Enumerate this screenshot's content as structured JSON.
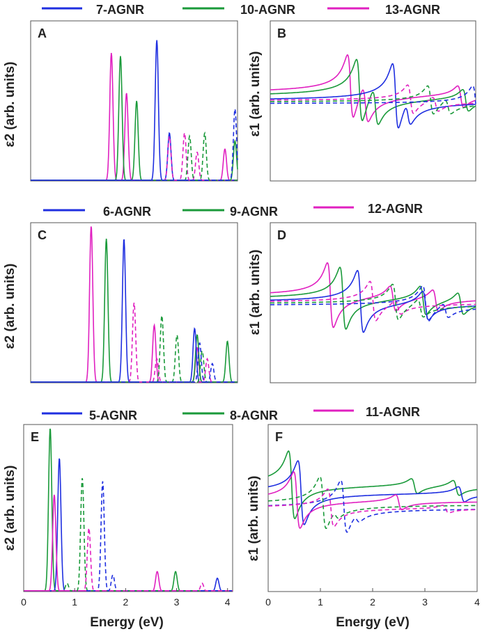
{
  "figure": {
    "x_axis_label": "Energy (eV)",
    "eps2_label": "ε2 (arb. units)",
    "eps1_label": "ε1 (arb. units)"
  },
  "colors": {
    "blue": "#1f2fe0",
    "green": "#1a9a3a",
    "magenta": "#e020c0"
  },
  "chart_data": [
    {
      "group": "top",
      "legend": [
        {
          "label": "7-AGNR",
          "color": "#1f2fe0"
        },
        {
          "label": "10-AGNR",
          "color": "#1a9a3a"
        },
        {
          "label": "13-AGNR",
          "color": "#e020c0"
        }
      ],
      "panels": [
        {
          "id": "A",
          "type": "line",
          "quantity": "eps2",
          "xlim": [
            0,
            4.1
          ],
          "ylim": [
            0,
            1
          ],
          "ylabel": "ε2 (arb. units)",
          "ticks": false,
          "series": [
            {
              "name": "13-AGNR",
              "color": "#e020c0",
              "dash": false,
              "peaks": [
                [
                  1.6,
                  0.8
                ],
                [
                  1.9,
                  0.55
                ],
                [
                  3.85,
                  0.2
                ]
              ]
            },
            {
              "name": "10-AGNR",
              "color": "#1a9a3a",
              "dash": false,
              "peaks": [
                [
                  1.78,
                  0.78
                ],
                [
                  2.1,
                  0.5
                ],
                [
                  4.05,
                  0.25
                ]
              ]
            },
            {
              "name": "7-AGNR",
              "color": "#1f2fe0",
              "dash": false,
              "peaks": [
                [
                  2.5,
                  0.88
                ],
                [
                  2.75,
                  0.3
                ]
              ]
            },
            {
              "name": "13-AGNR",
              "color": "#e020c0",
              "dash": true,
              "peaks": [
                [
                  2.75,
                  0.28
                ],
                [
                  3.05,
                  0.3
                ],
                [
                  3.3,
                  0.18
                ]
              ]
            },
            {
              "name": "10-AGNR",
              "color": "#1a9a3a",
              "dash": true,
              "peaks": [
                [
                  3.15,
                  0.28
                ],
                [
                  3.45,
                  0.3
                ]
              ]
            },
            {
              "name": "7-AGNR",
              "color": "#1f2fe0",
              "dash": true,
              "peaks": [
                [
                  4.05,
                  0.45
                ]
              ]
            }
          ]
        },
        {
          "id": "B",
          "type": "line",
          "quantity": "eps1",
          "xlim": [
            0,
            4.1
          ],
          "ylim": [
            -1,
            1
          ],
          "ylabel": "ε1 (arb. units)",
          "ticks": false,
          "series": [
            {
              "name": "13-AGNR",
              "color": "#e020c0",
              "dash": false,
              "res": [
                [
                  1.6,
                  0.9
                ],
                [
                  1.9,
                  0.5
                ],
                [
                  3.8,
                  0.3
                ]
              ],
              "base": 0.1
            },
            {
              "name": "10-AGNR",
              "color": "#1a9a3a",
              "dash": false,
              "res": [
                [
                  1.78,
                  0.88
                ],
                [
                  2.1,
                  0.5
                ],
                [
                  3.9,
                  0.3
                ]
              ],
              "base": 0.05
            },
            {
              "name": "7-AGNR",
              "color": "#1f2fe0",
              "dash": false,
              "res": [
                [
                  2.5,
                  0.92
                ],
                [
                  2.75,
                  0.3
                ]
              ],
              "base": 0.0
            },
            {
              "name": "13-AGNR",
              "color": "#e020c0",
              "dash": true,
              "res": [
                [
                  2.8,
                  0.4
                ],
                [
                  3.3,
                  0.2
                ]
              ],
              "base": 0.0
            },
            {
              "name": "10-AGNR",
              "color": "#1a9a3a",
              "dash": true,
              "res": [
                [
                  3.2,
                  0.4
                ],
                [
                  3.55,
                  0.2
                ]
              ],
              "base": -0.02
            },
            {
              "name": "7-AGNR",
              "color": "#1f2fe0",
              "dash": true,
              "res": [
                [
                  4.1,
                  0.5
                ]
              ],
              "base": -0.04
            }
          ]
        }
      ]
    },
    {
      "group": "middle",
      "legend": [
        {
          "label": "6-AGNR",
          "color": "#1f2fe0"
        },
        {
          "label": "9-AGNR",
          "color": "#1a9a3a"
        },
        {
          "label": "12-AGNR",
          "color": "#e020c0"
        }
      ],
      "panels": [
        {
          "id": "C",
          "type": "line",
          "quantity": "eps2",
          "xlim": [
            0,
            4.1
          ],
          "ylim": [
            0,
            1
          ],
          "ylabel": "ε2 (arb. units)",
          "ticks": false,
          "series": [
            {
              "name": "12-AGNR",
              "color": "#e020c0",
              "dash": false,
              "peaks": [
                [
                  1.2,
                  0.98
                ],
                [
                  2.45,
                  0.36
                ],
                [
                  3.3,
                  0.22
                ]
              ]
            },
            {
              "name": "9-AGNR",
              "color": "#1a9a3a",
              "dash": false,
              "peaks": [
                [
                  1.5,
                  0.9
                ],
                [
                  3.3,
                  0.3
                ],
                [
                  3.9,
                  0.26
                ]
              ]
            },
            {
              "name": "6-AGNR",
              "color": "#1f2fe0",
              "dash": false,
              "peaks": [
                [
                  1.85,
                  0.9
                ],
                [
                  3.25,
                  0.34
                ]
              ]
            },
            {
              "name": "12-AGNR",
              "color": "#e020c0",
              "dash": true,
              "peaks": [
                [
                  2.05,
                  0.5
                ],
                [
                  2.5,
                  0.15
                ],
                [
                  3.5,
                  0.15
                ]
              ]
            },
            {
              "name": "9-AGNR",
              "color": "#1a9a3a",
              "dash": true,
              "peaks": [
                [
                  2.6,
                  0.42
                ],
                [
                  2.9,
                  0.3
                ],
                [
                  3.4,
                  0.2
                ]
              ]
            },
            {
              "name": "6-AGNR",
              "color": "#1f2fe0",
              "dash": true,
              "peaks": [
                [
                  3.35,
                  0.25
                ],
                [
                  3.6,
                  0.12
                ]
              ]
            }
          ]
        },
        {
          "id": "D",
          "type": "line",
          "quantity": "eps1",
          "xlim": [
            0,
            4.1
          ],
          "ylim": [
            -1,
            1
          ],
          "ylabel": "ε1 (arb. units)",
          "ticks": false,
          "series": [
            {
              "name": "12-AGNR",
              "color": "#e020c0",
              "dash": false,
              "res": [
                [
                  1.2,
                  0.9
                ],
                [
                  2.45,
                  0.35
                ],
                [
                  3.3,
                  0.3
                ]
              ],
              "base": 0.08
            },
            {
              "name": "9-AGNR",
              "color": "#1a9a3a",
              "dash": false,
              "res": [
                [
                  1.45,
                  0.86
                ],
                [
                  3.05,
                  0.4
                ],
                [
                  3.8,
                  0.3
                ]
              ],
              "base": 0.04
            },
            {
              "name": "6-AGNR",
              "color": "#1f2fe0",
              "dash": false,
              "res": [
                [
                  1.8,
                  0.86
                ],
                [
                  3.1,
                  0.4
                ]
              ],
              "base": 0.0
            },
            {
              "name": "12-AGNR",
              "color": "#e020c0",
              "dash": true,
              "res": [
                [
                  2.05,
                  0.55
                ],
                [
                  2.55,
                  0.2
                ]
              ],
              "base": 0.0
            },
            {
              "name": "9-AGNR",
              "color": "#1a9a3a",
              "dash": true,
              "res": [
                [
                  2.5,
                  0.5
                ],
                [
                  3.0,
                  0.25
                ]
              ],
              "base": -0.02
            },
            {
              "name": "6-AGNR",
              "color": "#1f2fe0",
              "dash": true,
              "res": [
                [
                  3.1,
                  0.5
                ],
                [
                  3.5,
                  0.2
                ]
              ],
              "base": -0.04
            }
          ]
        }
      ]
    },
    {
      "group": "bottom",
      "legend": [
        {
          "label": "5-AGNR",
          "color": "#1f2fe0"
        },
        {
          "label": "8-AGNR",
          "color": "#1a9a3a"
        },
        {
          "label": "11-AGNR",
          "color": "#e020c0"
        }
      ],
      "panels": [
        {
          "id": "E",
          "type": "line",
          "quantity": "eps2",
          "xlim": [
            0,
            4.1
          ],
          "ylim": [
            0,
            1
          ],
          "ylabel": "ε2 (arb. units)",
          "ticks": true,
          "xticks": [
            0,
            1,
            2,
            3,
            4
          ],
          "xlabel": "Energy (eV)",
          "series": [
            {
              "name": "8-AGNR",
              "color": "#1a9a3a",
              "dash": false,
              "peaks": [
                [
                  0.52,
                  0.98
                ],
                [
                  2.98,
                  0.12
                ]
              ]
            },
            {
              "name": "5-AGNR",
              "color": "#1f2fe0",
              "dash": false,
              "peaks": [
                [
                  0.7,
                  0.8
                ],
                [
                  3.8,
                  0.08
                ]
              ]
            },
            {
              "name": "11-AGNR",
              "color": "#e020c0",
              "dash": false,
              "peaks": [
                [
                  0.6,
                  0.58
                ],
                [
                  2.62,
                  0.12
                ]
              ]
            },
            {
              "name": "8-AGNR",
              "color": "#1a9a3a",
              "dash": true,
              "peaks": [
                [
                  1.15,
                  0.68
                ],
                [
                  0.85,
                  0.05
                ]
              ]
            },
            {
              "name": "5-AGNR",
              "color": "#1f2fe0",
              "dash": true,
              "peaks": [
                [
                  1.55,
                  0.66
                ],
                [
                  1.75,
                  0.1
                ]
              ]
            },
            {
              "name": "11-AGNR",
              "color": "#e020c0",
              "dash": true,
              "peaks": [
                [
                  1.28,
                  0.38
                ],
                [
                  3.5,
                  0.05
                ]
              ]
            }
          ]
        },
        {
          "id": "F",
          "type": "line",
          "quantity": "eps1",
          "xlim": [
            0,
            4
          ],
          "ylim": [
            -1,
            1
          ],
          "ylabel": "ε1 (arb. units)",
          "ticks": true,
          "xticks": [
            0,
            1,
            2,
            3,
            4
          ],
          "xlabel": "Energy (eV)",
          "series": [
            {
              "name": "8-AGNR",
              "color": "#1a9a3a",
              "dash": false,
              "res": [
                [
                  0.45,
                  0.9
                ],
                [
                  2.8,
                  0.2
                ],
                [
                  3.6,
                  0.2
                ]
              ],
              "base": 0.3
            },
            {
              "name": "5-AGNR",
              "color": "#1f2fe0",
              "dash": false,
              "res": [
                [
                  0.63,
                  0.85
                ],
                [
                  3.7,
                  0.2
                ]
              ],
              "base": 0.2
            },
            {
              "name": "11-AGNR",
              "color": "#e020c0",
              "dash": false,
              "res": [
                [
                  0.55,
                  0.75
                ],
                [
                  2.5,
                  0.2
                ]
              ],
              "base": 0.1
            },
            {
              "name": "8-AGNR",
              "color": "#1a9a3a",
              "dash": true,
              "res": [
                [
                  1.05,
                  0.7
                ],
                [
                  1.3,
                  0.1
                ]
              ],
              "base": 0.05
            },
            {
              "name": "5-AGNR",
              "color": "#1f2fe0",
              "dash": true,
              "res": [
                [
                  1.45,
                  0.7
                ],
                [
                  1.7,
                  0.1
                ]
              ],
              "base": 0.0
            },
            {
              "name": "11-AGNR",
              "color": "#e020c0",
              "dash": true,
              "res": [
                [
                  1.2,
                  0.5
                ],
                [
                  3.4,
                  0.1
                ]
              ],
              "base": 0.0
            }
          ]
        }
      ]
    }
  ]
}
